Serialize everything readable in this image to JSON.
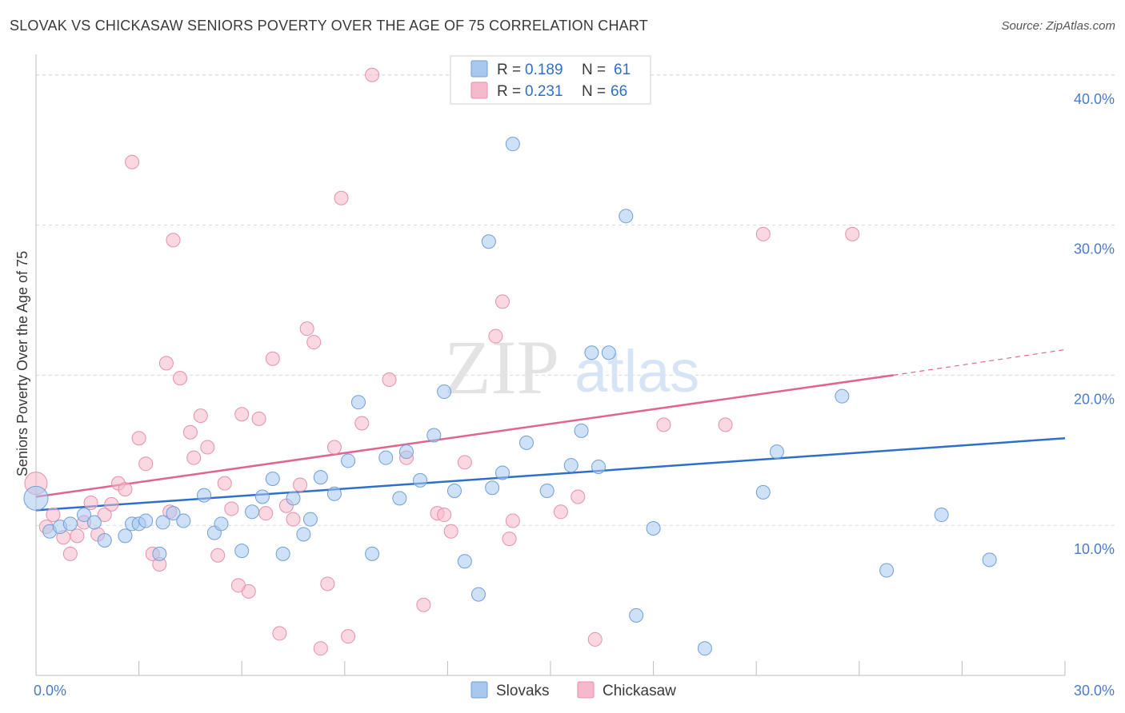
{
  "title": "SLOVAK VS CHICKASAW SENIORS POVERTY OVER THE AGE OF 75 CORRELATION CHART",
  "source": "Source: ZipAtlas.com",
  "watermark": {
    "zip": "ZIP",
    "atlas": "atlas"
  },
  "colors": {
    "slovaks_fill": "#a8c8f0",
    "slovaks_stroke": "#6f9fd8",
    "slovaks_line": "#2f6fcc",
    "chickasaw_fill": "#f6b8cb",
    "chickasaw_stroke": "#e88fab",
    "chickasaw_line": "#e0648f",
    "tick_label": "#4a7cc9",
    "grid": "#d9d9d9"
  },
  "legend": {
    "rows": [
      {
        "r_label": "R = ",
        "r_value": "0.189",
        "n_label": "N = ",
        "n_value": "61"
      },
      {
        "r_label": "R = ",
        "r_value": "0.231",
        "n_label": "N = ",
        "n_value": "66"
      }
    ]
  },
  "bottom_legend": [
    "Slovaks",
    "Chickasaw"
  ],
  "chart_data": {
    "type": "scatter",
    "title": "SLOVAK VS CHICKASAW SENIORS POVERTY OVER THE AGE OF 75 CORRELATION CHART",
    "xlabel": "",
    "ylabel": "Seniors Poverty Over the Age of 75",
    "xlim": [
      0,
      30
    ],
    "ylim": [
      0,
      41
    ],
    "x_tick_labels": [
      "0.0%",
      "30.0%"
    ],
    "y_ticks": [
      10,
      20,
      30,
      40
    ],
    "y_tick_labels": [
      "10.0%",
      "20.0%",
      "30.0%",
      "40.0%"
    ],
    "grid": true,
    "legend_position": "top-center",
    "series": [
      {
        "name": "Slovaks",
        "r": 0.189,
        "n": 61,
        "trend": {
          "x": [
            0,
            30
          ],
          "y": [
            11.0,
            15.8
          ]
        },
        "points": [
          [
            0.0,
            11.8
          ],
          [
            0.4,
            9.6
          ],
          [
            0.7,
            9.9
          ],
          [
            1.0,
            10.1
          ],
          [
            1.4,
            10.7
          ],
          [
            1.7,
            10.2
          ],
          [
            2.0,
            9.0
          ],
          [
            2.6,
            9.3
          ],
          [
            2.8,
            10.1
          ],
          [
            3.0,
            10.1
          ],
          [
            3.2,
            10.3
          ],
          [
            3.6,
            8.1
          ],
          [
            3.7,
            10.2
          ],
          [
            4.0,
            10.8
          ],
          [
            4.3,
            10.3
          ],
          [
            4.9,
            12.0
          ],
          [
            5.2,
            9.5
          ],
          [
            5.4,
            10.1
          ],
          [
            6.0,
            8.3
          ],
          [
            6.3,
            10.9
          ],
          [
            6.6,
            11.9
          ],
          [
            6.9,
            13.1
          ],
          [
            7.2,
            8.1
          ],
          [
            7.5,
            11.8
          ],
          [
            7.8,
            9.4
          ],
          [
            8.0,
            10.4
          ],
          [
            8.3,
            13.2
          ],
          [
            8.7,
            12.1
          ],
          [
            9.1,
            14.3
          ],
          [
            9.4,
            18.2
          ],
          [
            9.8,
            8.1
          ],
          [
            10.2,
            14.5
          ],
          [
            10.6,
            11.8
          ],
          [
            10.8,
            14.9
          ],
          [
            11.2,
            13.0
          ],
          [
            11.6,
            16.0
          ],
          [
            11.9,
            18.9
          ],
          [
            12.2,
            12.3
          ],
          [
            12.5,
            7.6
          ],
          [
            12.9,
            5.4
          ],
          [
            13.2,
            28.9
          ],
          [
            13.3,
            12.5
          ],
          [
            13.6,
            13.5
          ],
          [
            13.9,
            35.4
          ],
          [
            14.3,
            15.5
          ],
          [
            14.9,
            12.3
          ],
          [
            15.6,
            14.0
          ],
          [
            15.9,
            16.3
          ],
          [
            16.2,
            21.5
          ],
          [
            16.4,
            13.9
          ],
          [
            16.7,
            21.5
          ],
          [
            17.2,
            30.6
          ],
          [
            17.5,
            4.0
          ],
          [
            18.0,
            9.8
          ],
          [
            19.5,
            1.8
          ],
          [
            21.2,
            12.2
          ],
          [
            21.6,
            14.9
          ],
          [
            23.5,
            18.6
          ],
          [
            24.8,
            7.0
          ],
          [
            26.4,
            10.7
          ],
          [
            27.8,
            7.7
          ]
        ]
      },
      {
        "name": "Chickasaw",
        "r": 0.231,
        "n": 66,
        "trend": {
          "x": [
            0,
            25
          ],
          "y": [
            11.9,
            20.0
          ]
        },
        "trend_dashed": {
          "x": [
            25,
            30
          ],
          "y": [
            20.0,
            21.7
          ]
        },
        "points": [
          [
            0.0,
            12.8
          ],
          [
            0.3,
            9.9
          ],
          [
            0.5,
            10.7
          ],
          [
            0.8,
            9.2
          ],
          [
            1.0,
            8.1
          ],
          [
            1.2,
            9.3
          ],
          [
            1.4,
            10.2
          ],
          [
            1.6,
            11.5
          ],
          [
            1.8,
            9.4
          ],
          [
            2.0,
            10.7
          ],
          [
            2.2,
            11.4
          ],
          [
            2.4,
            12.8
          ],
          [
            2.6,
            12.4
          ],
          [
            2.8,
            34.2
          ],
          [
            3.0,
            15.8
          ],
          [
            3.2,
            14.1
          ],
          [
            3.4,
            8.1
          ],
          [
            3.6,
            7.4
          ],
          [
            3.8,
            20.8
          ],
          [
            3.9,
            10.9
          ],
          [
            4.0,
            29.0
          ],
          [
            4.2,
            19.8
          ],
          [
            4.5,
            16.2
          ],
          [
            4.6,
            14.5
          ],
          [
            4.8,
            17.3
          ],
          [
            5.0,
            15.2
          ],
          [
            5.3,
            8.0
          ],
          [
            5.5,
            12.8
          ],
          [
            5.7,
            11.1
          ],
          [
            6.0,
            17.4
          ],
          [
            6.2,
            5.6
          ],
          [
            6.5,
            17.1
          ],
          [
            6.7,
            10.8
          ],
          [
            6.9,
            21.1
          ],
          [
            7.1,
            2.8
          ],
          [
            7.3,
            11.3
          ],
          [
            7.5,
            10.4
          ],
          [
            7.7,
            12.7
          ],
          [
            7.9,
            23.1
          ],
          [
            8.1,
            22.2
          ],
          [
            8.3,
            1.8
          ],
          [
            8.5,
            6.1
          ],
          [
            8.7,
            15.2
          ],
          [
            8.9,
            31.8
          ],
          [
            9.1,
            2.6
          ],
          [
            9.5,
            16.8
          ],
          [
            9.8,
            40.0
          ],
          [
            10.3,
            19.7
          ],
          [
            10.8,
            14.5
          ],
          [
            11.3,
            4.7
          ],
          [
            11.7,
            10.8
          ],
          [
            11.9,
            10.7
          ],
          [
            12.1,
            9.6
          ],
          [
            12.5,
            14.2
          ],
          [
            13.4,
            22.6
          ],
          [
            13.6,
            24.9
          ],
          [
            13.8,
            9.1
          ],
          [
            15.3,
            10.9
          ],
          [
            15.8,
            11.9
          ],
          [
            16.3,
            2.4
          ],
          [
            18.3,
            16.7
          ],
          [
            20.1,
            16.7
          ],
          [
            21.2,
            29.4
          ],
          [
            23.8,
            29.4
          ],
          [
            13.9,
            10.3
          ],
          [
            5.9,
            6.0
          ]
        ]
      }
    ]
  }
}
